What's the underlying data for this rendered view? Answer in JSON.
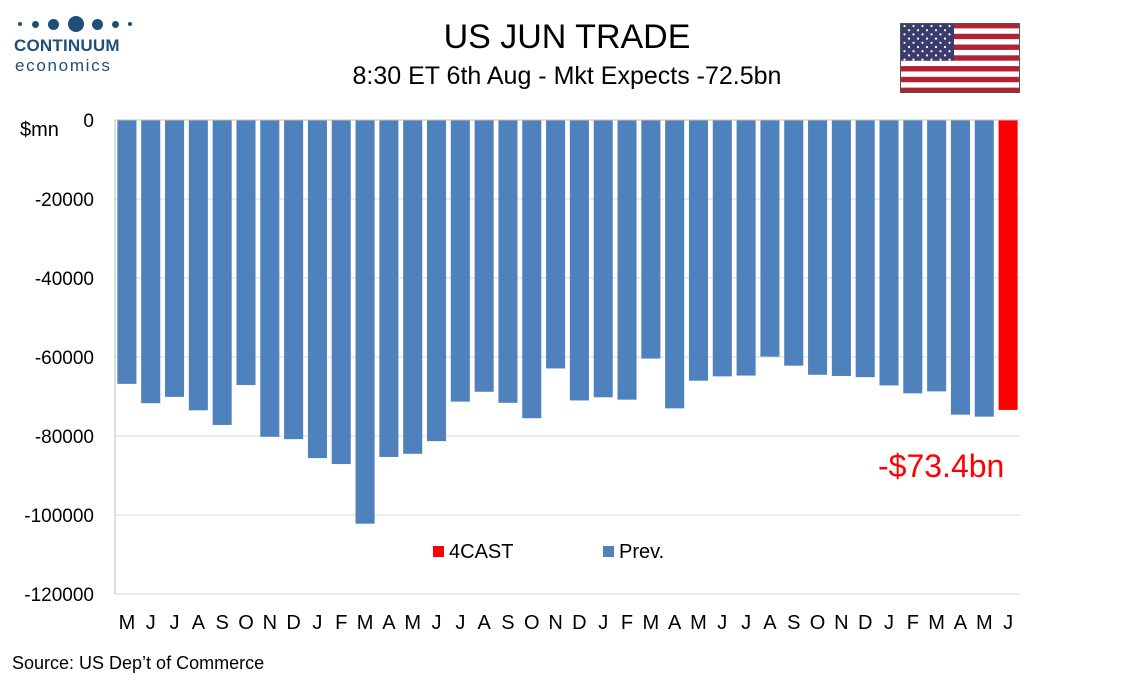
{
  "logo": {
    "name": "CONTINUUM",
    "tagline": "economics"
  },
  "header": {
    "title": "US JUN TRADE",
    "subtitle": "8:30 ET 6th Aug - Mkt Expects -72.5bn"
  },
  "flag": {
    "icon": "us-flag-icon"
  },
  "source": "Source: US Dep’t of Commerce",
  "colors": {
    "prev": "#4f81bd",
    "forecast": "#ff0000",
    "brand": "#1f4e79"
  },
  "chart_data": {
    "type": "bar",
    "title": "US JUN TRADE",
    "ylabel": "$mn",
    "xlabel": "",
    "ylim": [
      -120000,
      0
    ],
    "yticks": [
      0,
      -20000,
      -40000,
      -60000,
      -80000,
      -100000,
      -120000
    ],
    "categories": [
      "M",
      "J",
      "J",
      "A",
      "S",
      "O",
      "N",
      "D",
      "J",
      "F",
      "M",
      "A",
      "M",
      "J",
      "J",
      "A",
      "S",
      "O",
      "N",
      "D",
      "J",
      "F",
      "M",
      "A",
      "M",
      "J",
      "J",
      "A",
      "S",
      "O",
      "N",
      "D",
      "J",
      "F",
      "M",
      "A",
      "M",
      "J"
    ],
    "series": [
      {
        "name": "Prev.",
        "values": [
          -66800,
          -71700,
          -70100,
          -73500,
          -77200,
          -67100,
          -80200,
          -80800,
          -85600,
          -87100,
          -102200,
          -85300,
          -84500,
          -81300,
          -71300,
          -68800,
          -71600,
          -75500,
          -62900,
          -71000,
          -70200,
          -70800,
          -60400,
          -73000,
          -66000,
          -64900,
          -64700,
          -59900,
          -62200,
          -64500,
          -64800,
          -65100,
          -67200,
          -69200,
          -68700,
          -74600,
          -75100,
          null
        ]
      },
      {
        "name": "4CAST",
        "values": [
          null,
          null,
          null,
          null,
          null,
          null,
          null,
          null,
          null,
          null,
          null,
          null,
          null,
          null,
          null,
          null,
          null,
          null,
          null,
          null,
          null,
          null,
          null,
          null,
          null,
          null,
          null,
          null,
          null,
          null,
          null,
          null,
          null,
          null,
          null,
          null,
          null,
          -73400
        ]
      }
    ],
    "annotation": "-$73.4bn",
    "grid": "horizontal",
    "legend_position": "bottom-center"
  }
}
